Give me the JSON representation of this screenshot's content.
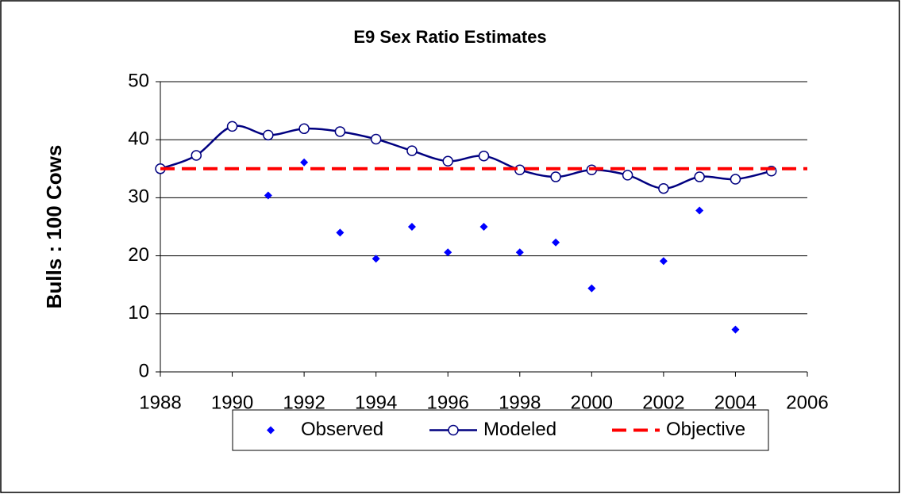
{
  "chart_data": {
    "type": "line",
    "title": "E9 Sex Ratio Estimates",
    "y_label": "Bulls : 100 Cows",
    "xlim": [
      1988,
      2006
    ],
    "xticks": [
      1988,
      1990,
      1992,
      1994,
      1996,
      1998,
      2000,
      2002,
      2004,
      2006
    ],
    "ylim": [
      0,
      50
    ],
    "yticks": [
      0,
      10,
      20,
      30,
      40,
      50
    ],
    "grid": true,
    "legend": "bottom",
    "series": [
      {
        "name": "Observed",
        "style": "markers",
        "color": "#0000ff",
        "x": [
          1991,
          1992,
          1993,
          1994,
          1995,
          1996,
          1997,
          1998,
          1999,
          2000,
          2002,
          2003,
          2004
        ],
        "values": [
          30.4,
          36.1,
          24.0,
          19.5,
          25.0,
          20.6,
          25.0,
          20.6,
          22.3,
          14.4,
          19.1,
          27.8,
          7.3
        ]
      },
      {
        "name": "Modeled",
        "style": "smooth-line-markers",
        "color": "#000080",
        "x": [
          1988,
          1989,
          1990,
          1991,
          1992,
          1993,
          1994,
          1995,
          1996,
          1997,
          1998,
          1999,
          2000,
          2001,
          2002,
          2003,
          2004,
          2005
        ],
        "values": [
          35.0,
          37.3,
          42.3,
          40.8,
          41.9,
          41.4,
          40.1,
          38.1,
          36.3,
          37.2,
          34.8,
          33.6,
          34.8,
          33.9,
          31.6,
          33.6,
          33.2,
          34.6
        ]
      },
      {
        "name": "Objective",
        "style": "dashed-line",
        "color": "#ff0000",
        "x": [
          1988,
          2006
        ],
        "values": [
          35,
          35
        ]
      }
    ]
  }
}
